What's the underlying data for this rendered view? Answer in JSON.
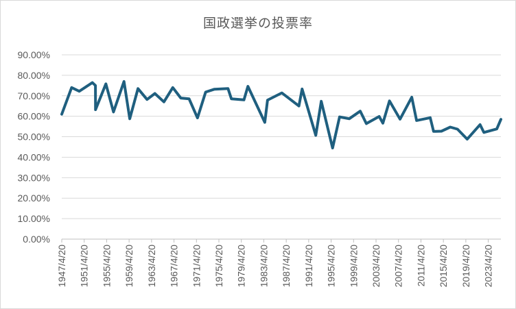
{
  "chart_data": {
    "type": "line",
    "title": "国政選挙の投票率",
    "xlabel": "",
    "ylabel": "",
    "ylim": [
      0,
      90
    ],
    "y_ticks": [
      "0.00%",
      "10.00%",
      "20.00%",
      "30.00%",
      "40.00%",
      "50.00%",
      "60.00%",
      "70.00%",
      "80.00%",
      "90.00%"
    ],
    "x_tick_labels": [
      "1947/4/20",
      "1951/4/20",
      "1955/4/20",
      "1959/4/20",
      "1963/4/20",
      "1967/4/20",
      "1971/4/20",
      "1975/4/20",
      "1979/4/20",
      "1983/4/20",
      "1987/4/20",
      "1991/4/20",
      "1995/4/20",
      "1999/4/20",
      "2003/4/20",
      "2007/4/20",
      "2011/4/20",
      "2015/4/20",
      "2019/4/20",
      "2023/4/20"
    ],
    "grid": true,
    "legend": "none",
    "line_color": "#1f5f7f",
    "series": [
      {
        "x": [
          "1947/4/20",
          "1949/1/23",
          "1950/6/4",
          "1952/10/1",
          "1953/4/19",
          "1953/4/24",
          "1955/2/27",
          "1956/7/8",
          "1958/5/22",
          "1959/6/2",
          "1960/11/20",
          "1962/7/1",
          "1963/11/21",
          "1965/7/4",
          "1967/1/29",
          "1968/7/7",
          "1969/12/27",
          "1971/6/27",
          "1972/12/10",
          "1974/7/7",
          "1976/12/5",
          "1977/7/10",
          "1979/10/7",
          "1980/6/22",
          "1983/6/26",
          "1983/12/18",
          "1986/7/6",
          "1989/7/23",
          "1990/2/18",
          "1992/7/26",
          "1993/7/18",
          "1995/7/23",
          "1996/10/20",
          "1998/7/12",
          "2000/6/25",
          "2001/7/29",
          "2003/11/9",
          "2004/7/11",
          "2005/9/11",
          "2007/7/29",
          "2009/8/30",
          "2010/7/11",
          "2012/12/16",
          "2013/7/21",
          "2014/12/14",
          "2016/7/10",
          "2017/10/22",
          "2019/7/21",
          "2021/10/31",
          "2022/7/10",
          "2024/10/27",
          "2025/7/20"
        ],
        "values": [
          61.0,
          74.0,
          72.2,
          76.4,
          75.0,
          63.2,
          75.8,
          62.1,
          77.0,
          58.8,
          73.5,
          68.2,
          71.1,
          67.0,
          74.0,
          68.9,
          68.5,
          59.2,
          71.8,
          73.2,
          73.5,
          68.5,
          68.0,
          74.6,
          57.0,
          67.9,
          71.4,
          65.0,
          73.3,
          50.7,
          67.3,
          44.5,
          59.7,
          58.8,
          62.5,
          56.4,
          59.9,
          56.6,
          67.5,
          58.6,
          69.3,
          57.9,
          59.3,
          52.6,
          52.7,
          54.7,
          53.7,
          48.8,
          55.9,
          52.1,
          53.8,
          58.5
        ]
      }
    ]
  }
}
